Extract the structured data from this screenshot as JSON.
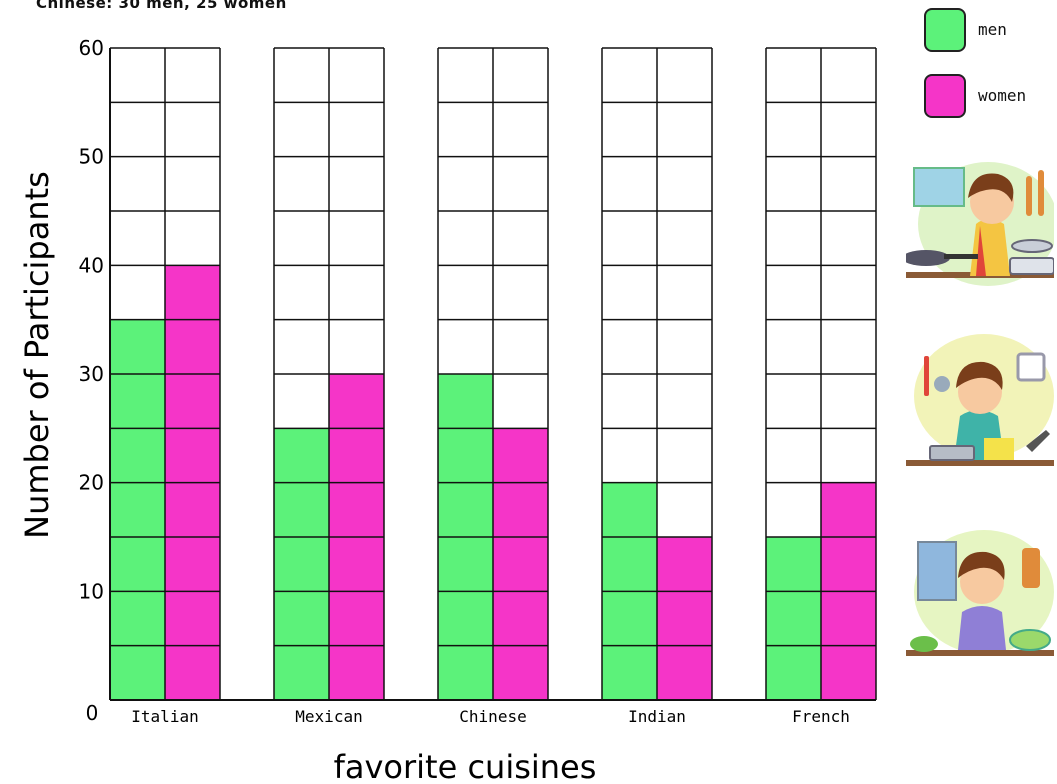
{
  "top_note": "Chinese:  30 men,  25 women",
  "legend": [
    {
      "label": "men",
      "color": "#5cf27a"
    },
    {
      "label": "women",
      "color": "#f535c8"
    }
  ],
  "illustrations": [
    {
      "name": "boy-cooking-with-pan-illustration"
    },
    {
      "name": "boy-chopping-vegetables-illustration"
    },
    {
      "name": "boy-preparing-salad-illustration"
    }
  ],
  "chart_data": {
    "type": "bar",
    "title": "",
    "xlabel": "favorite cuisines",
    "ylabel": "Number of Participants",
    "ylim": [
      0,
      60
    ],
    "grid_step": 5,
    "y_ticks": [
      {
        "value": 0,
        "label": "0"
      },
      {
        "value": 10,
        "label": "10"
      },
      {
        "value": 20,
        "label": "20"
      },
      {
        "value": 30,
        "label": "30"
      },
      {
        "value": 40,
        "label": "40"
      },
      {
        "value": 50,
        "label": "50"
      },
      {
        "value": 60,
        "label": "60"
      }
    ],
    "categories": [
      "Italian",
      "Mexican",
      "Chinese",
      "Indian",
      "French"
    ],
    "series": [
      {
        "name": "men",
        "color": "#5cf27a",
        "values": [
          35,
          25,
          30,
          20,
          15
        ]
      },
      {
        "name": "women",
        "color": "#f535c8",
        "values": [
          40,
          30,
          25,
          15,
          20
        ]
      }
    ],
    "grid": true,
    "legend_position": "top-right"
  }
}
